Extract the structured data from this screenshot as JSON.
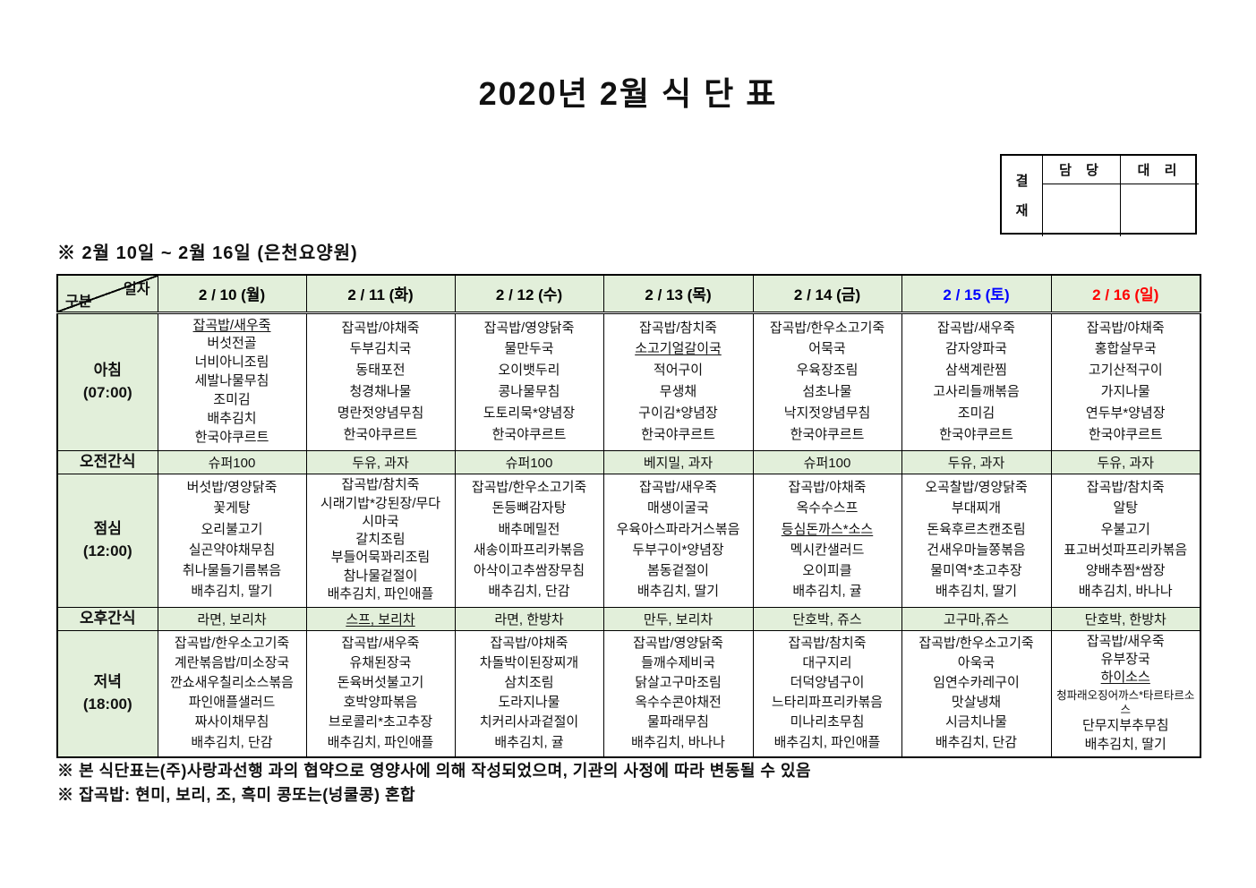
{
  "page": {
    "title": "2020년 2월 식 단 표"
  },
  "approval": {
    "stamp_label": "결재",
    "columns": [
      "담 당",
      "대 리"
    ]
  },
  "subtitle": "※ 2월 10일 ~ 2월 16일 (은천요양원)",
  "colors": {
    "header_green": "#e2efda",
    "weekday": "#000000",
    "saturday": "#0000ff",
    "sunday": "#ff0000"
  },
  "table": {
    "corner": {
      "top": "일자",
      "bottom": "구분"
    },
    "dates": [
      {
        "label": "2 / 10 (월)",
        "color": "#000000"
      },
      {
        "label": "2 / 11 (화)",
        "color": "#000000"
      },
      {
        "label": "2 / 12 (수)",
        "color": "#000000"
      },
      {
        "label": "2 / 13 (목)",
        "color": "#000000"
      },
      {
        "label": "2 / 14 (금)",
        "color": "#000000"
      },
      {
        "label": "2 / 15 (토)",
        "color": "#0000ff"
      },
      {
        "label": "2 / 16 (일)",
        "color": "#ff0000"
      }
    ],
    "rows": [
      {
        "id": "breakfast",
        "label": "아침",
        "time": "(07:00)",
        "type": "meal",
        "cells": [
          [
            "잡곡밥/새우죽",
            "버섯전골",
            "너비아니조림",
            "세발나물무침",
            "조미김",
            "배추김치",
            "한국야쿠르트"
          ],
          [
            "잡곡밥/야채죽",
            "두부김치국",
            "동태포전",
            "청경채나물",
            "명란젓양념무침",
            "한국야쿠르트"
          ],
          [
            "잡곡밥/영양닭죽",
            "물만두국",
            "오이뱃두리",
            "콩나물무침",
            "도토리묵*양념장",
            "한국야쿠르트"
          ],
          [
            "잡곡밥/참치죽",
            "소고기얼갈이국",
            "적어구이",
            "무생채",
            "구이김*양념장",
            "한국야쿠르트"
          ],
          [
            "잡곡밥/한우소고기죽",
            "어묵국",
            "우육장조림",
            "섬초나물",
            "낙지젓양념무침",
            "한국야쿠르트"
          ],
          [
            "잡곡밥/새우죽",
            "감자양파국",
            "삼색계란찜",
            "고사리들깨볶음",
            "조미김",
            "한국야쿠르트"
          ],
          [
            "잡곡밥/야채죽",
            "홍합살무국",
            "고기산적구이",
            "가지나물",
            "연두부*양념장",
            "한국야쿠르트"
          ]
        ]
      },
      {
        "id": "am_snack",
        "label": "오전간식",
        "time": "",
        "type": "snack",
        "cells": [
          [
            "슈퍼100"
          ],
          [
            "두유, 과자"
          ],
          [
            "슈퍼100"
          ],
          [
            "베지밀, 과자"
          ],
          [
            "슈퍼100"
          ],
          [
            "두유, 과자"
          ],
          [
            "두유, 과자"
          ]
        ]
      },
      {
        "id": "lunch",
        "label": "점심",
        "time": "(12:00)",
        "type": "meal",
        "cells": [
          [
            "버섯밥/영양닭죽",
            "꽃게탕",
            "오리불고기",
            "실곤약야채무침",
            "취나물들기름볶음",
            "배추김치, 딸기"
          ],
          [
            "잡곡밥/참치죽",
            "시래기밥*강된장/무다",
            "시마국",
            "갈치조림",
            "부들어묵꽈리조림",
            "참나물겉절이",
            "배추김치, 파인애플"
          ],
          [
            "잡곡밥/한우소고기죽",
            "돈등뼈감자탕",
            "배추메밀전",
            "새송이파프리카볶음",
            "아삭이고추쌈장무침",
            "배추김치, 단감"
          ],
          [
            "잡곡밥/새우죽",
            "매생이굴국",
            "우육아스파라거스볶음",
            "두부구이*양념장",
            "봄동겉절이",
            "배추김치, 딸기"
          ],
          [
            "잡곡밥/야채죽",
            "옥수수스프",
            "등심돈까스*소스",
            "멕시칸샐러드",
            "오이피클",
            "배추김치, 귤"
          ],
          [
            "오곡찰밥/영양닭죽",
            "부대찌개",
            "돈육후르츠캔조림",
            "건새우마늘쫑볶음",
            "물미역*초고추장",
            "배추김치, 딸기"
          ],
          [
            "잡곡밥/참치죽",
            "알탕",
            "우불고기",
            "표고버섯파프리카볶음",
            "양배추찜*쌈장",
            "배추김치, 바나나"
          ]
        ]
      },
      {
        "id": "pm_snack",
        "label": "오후간식",
        "time": "",
        "type": "snack",
        "cells": [
          [
            "라면, 보리차"
          ],
          [
            "스프, 보리차"
          ],
          [
            "라면, 한방차"
          ],
          [
            "만두, 보리차"
          ],
          [
            "단호박, 쥬스"
          ],
          [
            "고구마,쥬스"
          ],
          [
            "단호박, 한방차"
          ]
        ]
      },
      {
        "id": "dinner",
        "label": "저녁",
        "time": "(18:00)",
        "type": "meal",
        "cells": [
          [
            "잡곡밥/한우소고기죽",
            "계란볶음밥/미소장국",
            "깐쇼새우칠리소스볶음",
            "파인애플샐러드",
            "짜사이채무침",
            "배추김치, 단감"
          ],
          [
            "잡곡밥/새우죽",
            "유채된장국",
            "돈육버섯불고기",
            "호박양파볶음",
            "브로콜리*초고추장",
            "배추김치, 파인애플"
          ],
          [
            "잡곡밥/야채죽",
            "차돌박이된장찌개",
            "삼치조림",
            "도라지나물",
            "치커리사과겉절이",
            "배추김치, 귤"
          ],
          [
            "잡곡밥/영양닭죽",
            "들깨수제비국",
            "닭살고구마조림",
            "옥수수콘야채전",
            "물파래무침",
            "배추김치, 바나나"
          ],
          [
            "잡곡밥/참치죽",
            "대구지리",
            "더덕양념구이",
            "느타리파프리카볶음",
            "미나리초무침",
            "배추김치, 파인애플"
          ],
          [
            "잡곡밥/한우소고기죽",
            "아욱국",
            "임연수카레구이",
            "맛살냉채",
            "시금치나물",
            "배추김치, 단감"
          ],
          [
            "잡곡밥/새우죽",
            "유부장국",
            "하이소스",
            "청파래오징어까스*타르타르소스",
            "단무지부추무침",
            "배추김치, 딸기"
          ]
        ]
      }
    ],
    "underlines": [
      "breakfast-0-0",
      "breakfast-3-1",
      "lunch-4-2",
      "pm_snack-1-0",
      "dinner-6-2"
    ],
    "small_lines": [
      "dinner-6-3"
    ]
  },
  "notes": [
    "※ 본 식단표는(주)사랑과선행 과의 협약으로 영양사에 의해 작성되었으며, 기관의 사정에 따라 변동될 수 있음",
    "※ 잡곡밥: 현미, 보리, 조, 흑미 콩또는(넝쿨콩) 혼합"
  ]
}
